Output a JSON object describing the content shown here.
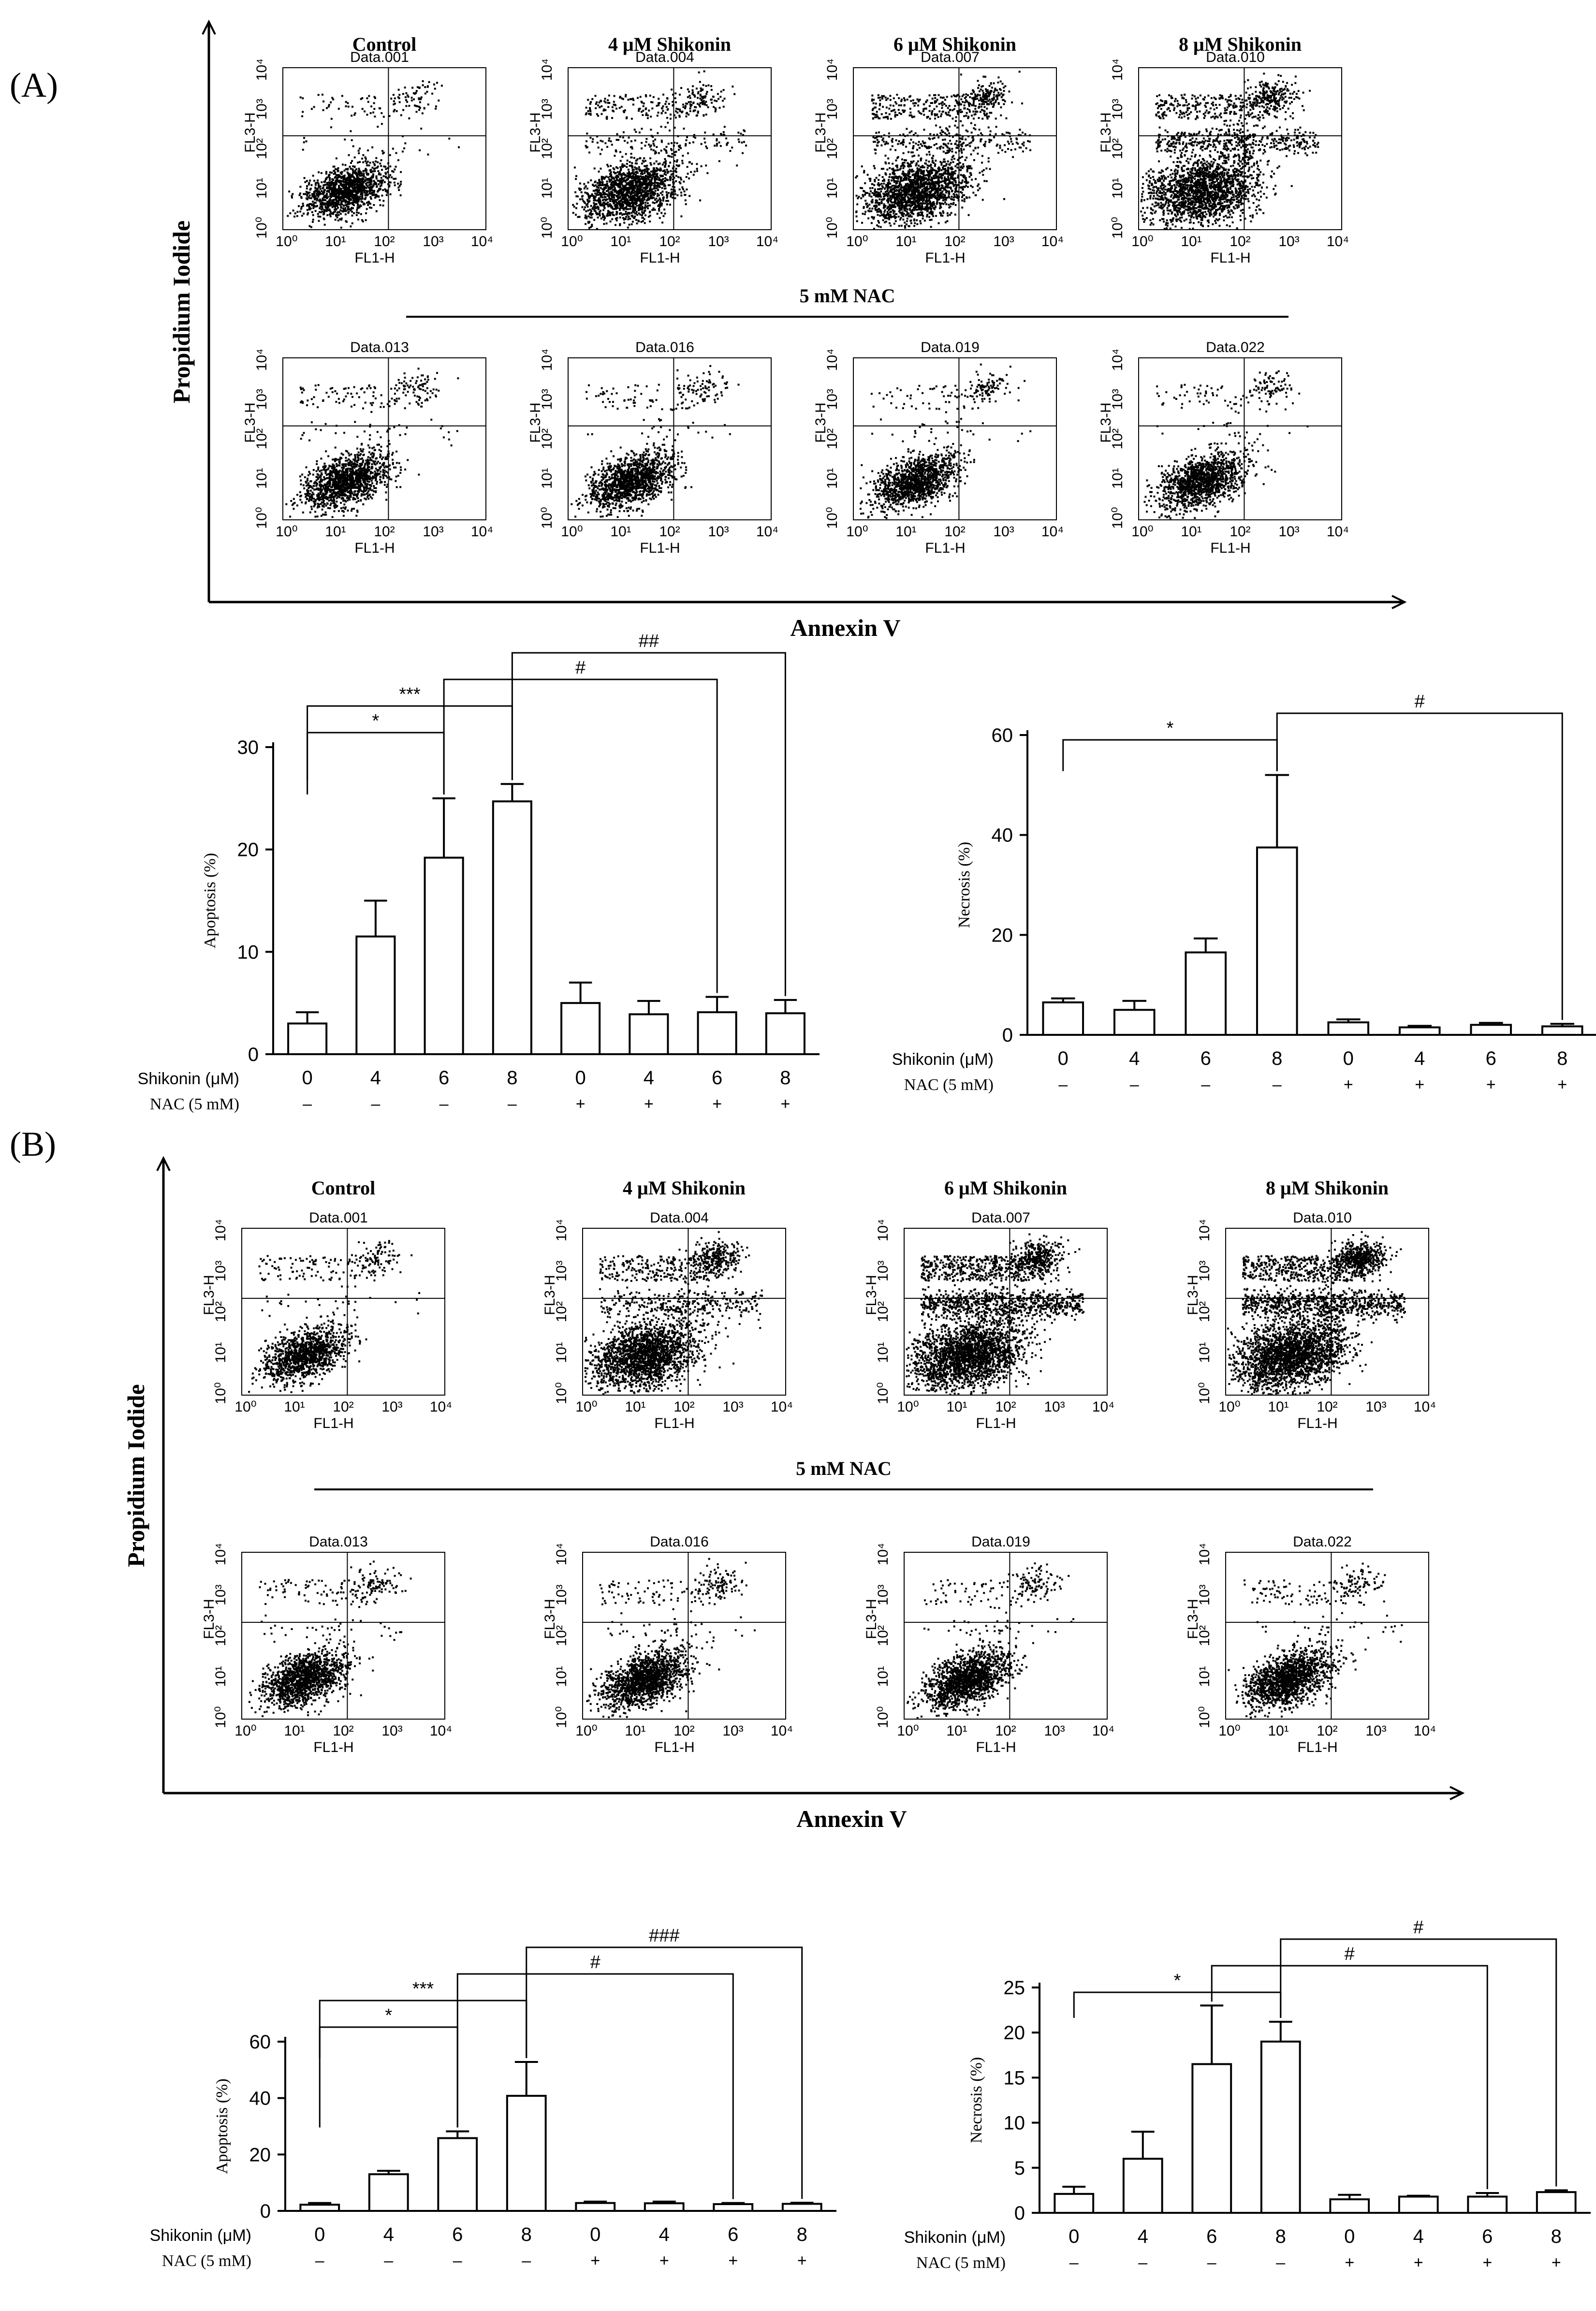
{
  "panels": [
    {
      "label": "(A)",
      "y_axis_label": "Propidium Iodide",
      "x_axis_label": "Annexin V",
      "nac_label": "5 mM NAC",
      "row_titles": [
        "Control",
        "4 μM Shikonin",
        "6 μM Shikonin",
        "8 μM Shikonin"
      ],
      "dot_plots": [
        {
          "sample": "Data.001",
          "x_label": "FL1-H",
          "y_label": "FL3-H",
          "ticks": [
            "10⁰",
            "10¹",
            "10²",
            "10³",
            "10⁴"
          ]
        },
        {
          "sample": "Data.004",
          "x_label": "FL1-H",
          "y_label": "FL3-H",
          "ticks": [
            "10⁰",
            "10¹",
            "10²",
            "10³",
            "10⁴"
          ]
        },
        {
          "sample": "Data.007",
          "x_label": "FL1-H",
          "y_label": "FL3-H",
          "ticks": [
            "10⁰",
            "10¹",
            "10²",
            "10³",
            "10⁴"
          ]
        },
        {
          "sample": "Data.010",
          "x_label": "FL1-H",
          "y_label": "FL3-H",
          "ticks": [
            "10⁰",
            "10¹",
            "10²",
            "10³",
            "10⁴"
          ]
        },
        {
          "sample": "Data.013",
          "x_label": "FL1-H",
          "y_label": "FL3-H",
          "ticks": [
            "10⁰",
            "10¹",
            "10²",
            "10³",
            "10⁴"
          ]
        },
        {
          "sample": "Data.016",
          "x_label": "FL1-H",
          "y_label": "FL3-H",
          "ticks": [
            "10⁰",
            "10¹",
            "10²",
            "10³",
            "10⁴"
          ]
        },
        {
          "sample": "Data.019",
          "x_label": "FL1-H",
          "y_label": "FL3-H",
          "ticks": [
            "10⁰",
            "10¹",
            "10²",
            "10³",
            "10⁴"
          ]
        },
        {
          "sample": "Data.022",
          "x_label": "FL1-H",
          "y_label": "FL3-H",
          "ticks": [
            "10⁰",
            "10¹",
            "10²",
            "10³",
            "10⁴"
          ]
        }
      ]
    },
    {
      "label": "(B)",
      "y_axis_label": "Propidium Iodide",
      "x_axis_label": "Annexin V",
      "nac_label": "5 mM NAC",
      "row_titles": [
        "Control",
        "4 μM Shikonin",
        "6 μM Shikonin",
        "8 μM Shikonin"
      ],
      "dot_plots": [
        {
          "sample": "Data.001",
          "x_label": "FL1-H",
          "y_label": "FL3-H",
          "ticks": [
            "10⁰",
            "10¹",
            "10²",
            "10³",
            "10⁴"
          ]
        },
        {
          "sample": "Data.004",
          "x_label": "FL1-H",
          "y_label": "FL3-H",
          "ticks": [
            "10⁰",
            "10¹",
            "10²",
            "10³",
            "10⁴"
          ]
        },
        {
          "sample": "Data.007",
          "x_label": "FL1-H",
          "y_label": "FL3-H",
          "ticks": [
            "10⁰",
            "10¹",
            "10²",
            "10³",
            "10⁴"
          ]
        },
        {
          "sample": "Data.010",
          "x_label": "FL1-H",
          "y_label": "FL3-H",
          "ticks": [
            "10⁰",
            "10¹",
            "10²",
            "10³",
            "10⁴"
          ]
        },
        {
          "sample": "Data.013",
          "x_label": "FL1-H",
          "y_label": "FL3-H",
          "ticks": [
            "10⁰",
            "10¹",
            "10²",
            "10³",
            "10⁴"
          ]
        },
        {
          "sample": "Data.016",
          "x_label": "FL1-H",
          "y_label": "FL3-H",
          "ticks": [
            "10⁰",
            "10¹",
            "10²",
            "10³",
            "10⁴"
          ]
        },
        {
          "sample": "Data.019",
          "x_label": "FL1-H",
          "y_label": "FL3-H",
          "ticks": [
            "10⁰",
            "10¹",
            "10²",
            "10³",
            "10⁴"
          ]
        },
        {
          "sample": "Data.022",
          "x_label": "FL1-H",
          "y_label": "FL3-H",
          "ticks": [
            "10⁰",
            "10¹",
            "10²",
            "10³",
            "10⁴"
          ]
        }
      ]
    }
  ],
  "chart_data": [
    {
      "id": "A-apoptosis",
      "type": "bar",
      "ylabel": "Apoptosis (%)",
      "ylim": [
        0,
        30
      ],
      "yticks": [
        0,
        10,
        20,
        30
      ],
      "categories": [
        "0",
        "4",
        "6",
        "8",
        "0",
        "4",
        "6",
        "8"
      ],
      "values": [
        3.0,
        11.5,
        19.2,
        24.7,
        5.0,
        3.9,
        4.1,
        4.0
      ],
      "errors": [
        1.1,
        3.5,
        5.8,
        1.7,
        2.0,
        1.3,
        1.5,
        1.3
      ],
      "row_labels": [
        "Shikonin (μM)",
        "NAC (5 mM)"
      ],
      "nac_signs": [
        "–",
        "–",
        "–",
        "–",
        "+",
        "+",
        "+",
        "+"
      ],
      "significance": [
        {
          "from": 0,
          "to": 2,
          "label": "*"
        },
        {
          "from": 0,
          "to": 3,
          "label": "***"
        },
        {
          "from": 2,
          "to": 6,
          "label": "#"
        },
        {
          "from": 3,
          "to": 7,
          "label": "##"
        }
      ]
    },
    {
      "id": "A-necrosis",
      "type": "bar",
      "ylabel": "Necrosis (%)",
      "ylim": [
        0,
        60
      ],
      "yticks": [
        0,
        20,
        40,
        60
      ],
      "categories": [
        "0",
        "4",
        "6",
        "8",
        "0",
        "4",
        "6",
        "8"
      ],
      "values": [
        6.5,
        5.0,
        16.5,
        37.5,
        2.5,
        1.5,
        2.0,
        1.7
      ],
      "errors": [
        0.8,
        1.8,
        2.8,
        14.5,
        0.6,
        0.3,
        0.4,
        0.5
      ],
      "row_labels": [
        "Shikonin (μM)",
        "NAC (5 mM)"
      ],
      "nac_signs": [
        "–",
        "–",
        "–",
        "–",
        "+",
        "+",
        "+",
        "+"
      ],
      "significance": [
        {
          "from": 0,
          "to": 3,
          "label": "*"
        },
        {
          "from": 3,
          "to": 7,
          "label": "#"
        }
      ]
    },
    {
      "id": "B-apoptosis",
      "type": "bar",
      "ylabel": "Apoptosis (%)",
      "ylim": [
        0,
        60
      ],
      "yticks": [
        0,
        20,
        40,
        60
      ],
      "categories": [
        "0",
        "4",
        "6",
        "8",
        "0",
        "4",
        "6",
        "8"
      ],
      "values": [
        2.2,
        13.0,
        25.8,
        40.8,
        2.8,
        2.7,
        2.4,
        2.5
      ],
      "errors": [
        0.6,
        1.2,
        2.4,
        12.0,
        0.5,
        0.6,
        0.4,
        0.4
      ],
      "row_labels": [
        "Shikonin (μM)",
        "NAC (5 mM)"
      ],
      "nac_signs": [
        "–",
        "–",
        "–",
        "–",
        "+",
        "+",
        "+",
        "+"
      ],
      "significance": [
        {
          "from": 0,
          "to": 2,
          "label": "*"
        },
        {
          "from": 0,
          "to": 3,
          "label": "***"
        },
        {
          "from": 2,
          "to": 6,
          "label": "#"
        },
        {
          "from": 3,
          "to": 7,
          "label": "###"
        }
      ]
    },
    {
      "id": "B-necrosis",
      "type": "bar",
      "ylabel": "Necrosis (%)",
      "ylim": [
        0,
        25
      ],
      "yticks": [
        0,
        5,
        10,
        15,
        20,
        25
      ],
      "categories": [
        "0",
        "4",
        "6",
        "8",
        "0",
        "4",
        "6",
        "8"
      ],
      "values": [
        2.1,
        6.0,
        16.5,
        19.0,
        1.5,
        1.8,
        1.8,
        2.3
      ],
      "errors": [
        0.8,
        3.0,
        6.5,
        2.2,
        0.5,
        0.1,
        0.4,
        0.2
      ],
      "row_labels": [
        "Shikonin (μM)",
        "NAC (5 mM)"
      ],
      "nac_signs": [
        "–",
        "–",
        "–",
        "–",
        "+",
        "+",
        "+",
        "+"
      ],
      "significance": [
        {
          "from": 0,
          "to": 3,
          "label": "*"
        },
        {
          "from": 2,
          "to": 6,
          "label": "#"
        },
        {
          "from": 3,
          "to": 7,
          "label": "#"
        }
      ]
    }
  ]
}
